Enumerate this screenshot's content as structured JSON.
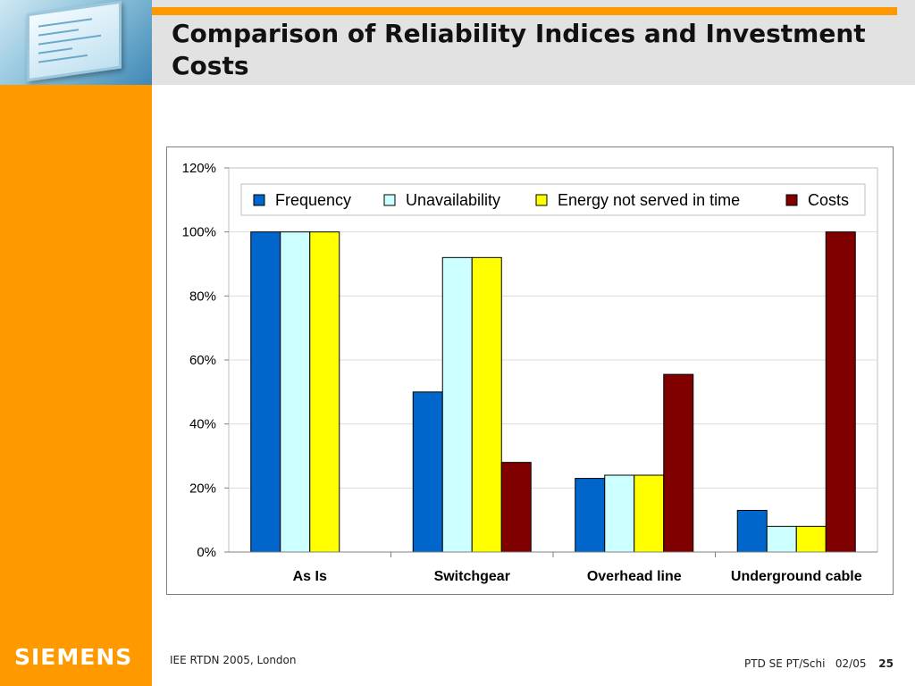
{
  "slide": {
    "title": "Comparison of Reliability Indices and Investment Costs",
    "logo": "SIEMENS",
    "footer_left": "IEE RTDN 2005, London",
    "footer_org": "PTD SE PT/Schi",
    "footer_date": "02/05",
    "page_number": "25"
  },
  "colors": {
    "orange": "#ff9900",
    "frequency": "#0066cc",
    "unavailability": "#ccffff",
    "energy": "#ffff00",
    "costs": "#800000"
  },
  "chart_data": {
    "type": "bar",
    "categories": [
      "As Is",
      "Switchgear",
      "Overhead line",
      "Underground cable"
    ],
    "series": [
      {
        "name": "Frequency",
        "color": "#0066cc",
        "values": [
          100,
          50,
          23,
          13
        ]
      },
      {
        "name": "Unavailability",
        "color": "#ccffff",
        "values": [
          100,
          92,
          24,
          8
        ]
      },
      {
        "name": "Energy not served in time",
        "color": "#ffff00",
        "values": [
          100,
          92,
          24,
          8
        ]
      },
      {
        "name": "Costs",
        "color": "#800000",
        "values": [
          null,
          28,
          55.5,
          100
        ]
      }
    ],
    "ylim": [
      0,
      120
    ],
    "yticks": [
      "0%",
      "20%",
      "40%",
      "60%",
      "80%",
      "100%",
      "120%"
    ],
    "grid": true,
    "legend": "top"
  }
}
